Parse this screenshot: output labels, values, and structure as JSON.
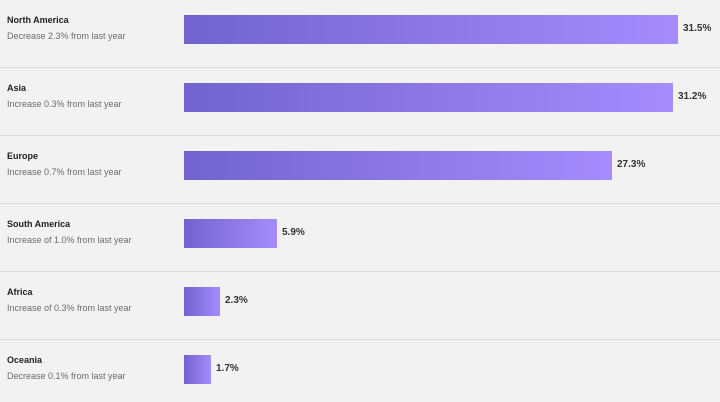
{
  "chart_data": {
    "type": "bar",
    "orientation": "horizontal",
    "categories": [
      "North America",
      "Asia",
      "Europe",
      "South America",
      "Africa",
      "Oceania"
    ],
    "values": [
      31.5,
      31.2,
      27.3,
      5.9,
      2.3,
      1.7
    ],
    "value_labels": [
      "31.5%",
      "31.2%",
      "27.3%",
      "5.9%",
      "2.3%",
      "1.7%"
    ],
    "change_notes": [
      "Decrease 2.3% from last year",
      "Increase 0.3% from last year",
      "Increase 0.7% from last year",
      "Increase of 1.0% from last year",
      "Increase of 0.3% from last year",
      "Decrease 0.1% from last year"
    ],
    "unit": "%",
    "xlim": [
      0,
      31.5
    ],
    "bar_gradient": [
      "#7263cf",
      "#a48cfd"
    ],
    "grid": false,
    "legend": "none"
  }
}
